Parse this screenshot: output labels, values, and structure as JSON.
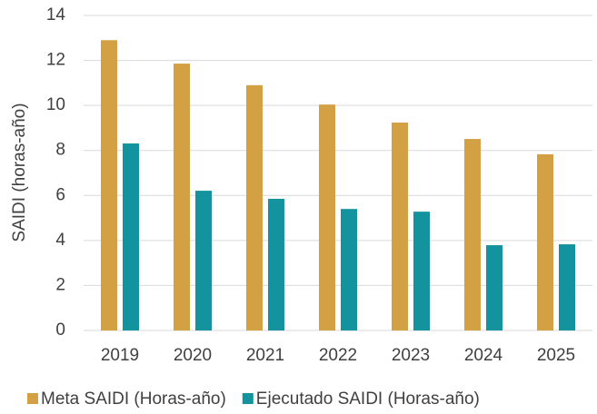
{
  "chart_data": {
    "type": "bar",
    "y_label": "SAIDI (horas-año)",
    "categories": [
      "2019",
      "2020",
      "2021",
      "2022",
      "2023",
      "2024",
      "2025"
    ],
    "series": [
      {
        "name": "Meta SAIDI (Horas-año)",
        "color": "#d4a044",
        "values": [
          12.9,
          11.86,
          10.9,
          10.04,
          9.24,
          8.51,
          7.83
        ]
      },
      {
        "name": "Ejecutado SAIDI (Horas-año)",
        "color": "#13939e",
        "values": [
          8.31,
          6.21,
          5.85,
          5.4,
          5.28,
          3.79,
          3.83
        ]
      }
    ],
    "ylim": [
      0,
      14
    ],
    "yticks": [
      0,
      2,
      4,
      6,
      8,
      10,
      12,
      14
    ],
    "grid": true,
    "legend": "bottom"
  }
}
